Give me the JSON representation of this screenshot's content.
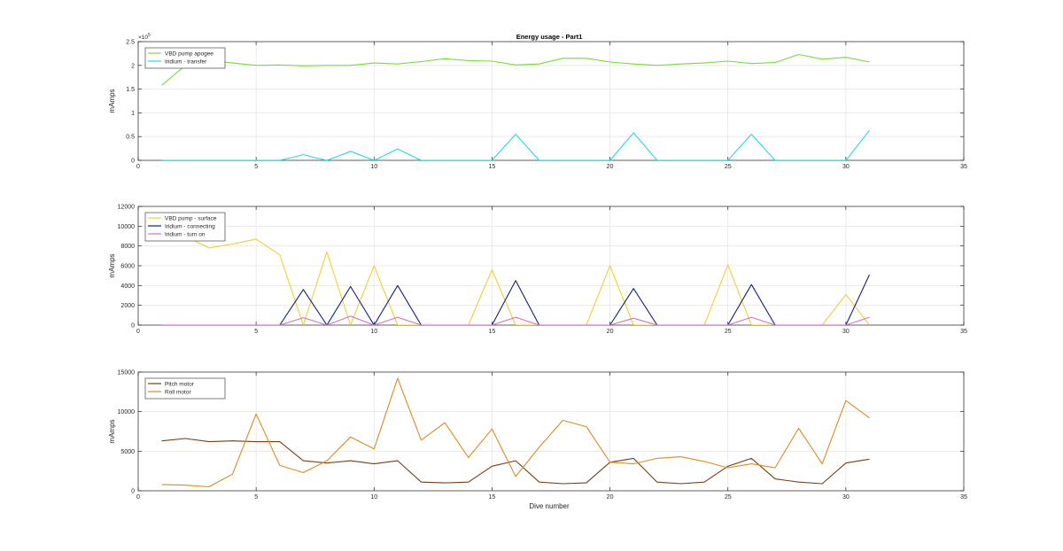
{
  "figure": {
    "title": "Energy usage - Part1",
    "xlabel": "Dive number"
  },
  "chart_data": [
    {
      "type": "line",
      "title": "Energy usage - Part1",
      "xlabel": "",
      "ylabel": "mAmps",
      "xlim": [
        0,
        35
      ],
      "ylim": [
        0,
        250000
      ],
      "xticks": [
        0,
        5,
        10,
        15,
        20,
        25,
        30,
        35
      ],
      "yticks": [
        0,
        50000,
        100000,
        150000,
        200000,
        250000
      ],
      "ytick_labels": [
        "0",
        "0.5",
        "1",
        "1.5",
        "2",
        "2.5"
      ],
      "y_exponent_label": "×10",
      "y_exponent_power": "5",
      "grid": true,
      "legend": "top-left",
      "series": [
        {
          "name": "VBD pump apogee",
          "color": "#77dd33",
          "x": [
            1,
            2,
            3,
            4,
            5,
            6,
            7,
            8,
            9,
            10,
            11,
            12,
            13,
            14,
            15,
            16,
            17,
            18,
            19,
            20,
            21,
            22,
            23,
            24,
            25,
            26,
            27,
            28,
            29,
            30,
            31
          ],
          "values": [
            158000,
            200000,
            210000,
            205000,
            200000,
            201000,
            199000,
            200000,
            200000,
            205000,
            203000,
            208000,
            214000,
            210000,
            209000,
            201000,
            203000,
            215000,
            215000,
            207000,
            203000,
            200000,
            203000,
            205000,
            209000,
            204000,
            206000,
            223000,
            213000,
            217000,
            207000
          ]
        },
        {
          "name": "Iridium - transfer",
          "color": "#22dddd",
          "x": [
            1,
            2,
            3,
            4,
            5,
            6,
            7,
            8,
            9,
            10,
            11,
            12,
            13,
            14,
            15,
            16,
            17,
            18,
            19,
            20,
            21,
            22,
            23,
            24,
            25,
            26,
            27,
            28,
            29,
            30,
            31
          ],
          "values": [
            0,
            0,
            0,
            0,
            0,
            0,
            12000,
            0,
            19000,
            0,
            24000,
            0,
            0,
            0,
            0,
            55000,
            0,
            0,
            0,
            0,
            58000,
            0,
            0,
            0,
            0,
            55000,
            0,
            0,
            0,
            0,
            63000
          ]
        }
      ]
    },
    {
      "type": "line",
      "xlabel": "",
      "ylabel": "mAmps",
      "xlim": [
        0,
        35
      ],
      "ylim": [
        0,
        12000
      ],
      "xticks": [
        0,
        5,
        10,
        15,
        20,
        25,
        30,
        35
      ],
      "yticks": [
        0,
        2000,
        4000,
        6000,
        8000,
        10000,
        12000
      ],
      "ytick_labels": [
        "0",
        "2000",
        "4000",
        "6000",
        "8000",
        "10000",
        "12000"
      ],
      "grid": true,
      "legend": "top-left",
      "series": [
        {
          "name": "VBD pump - surface",
          "color": "#f2d030",
          "x": [
            1,
            2,
            3,
            4,
            5,
            6,
            7,
            8,
            9,
            10,
            11,
            12,
            13,
            14,
            15,
            16,
            17,
            18,
            19,
            20,
            21,
            22,
            23,
            24,
            25,
            26,
            27,
            28,
            29,
            30,
            31
          ],
          "values": [
            10000,
            9000,
            7800,
            8200,
            8700,
            7100,
            0,
            7400,
            0,
            6000,
            0,
            0,
            0,
            0,
            5600,
            0,
            0,
            0,
            0,
            6000,
            0,
            0,
            0,
            0,
            6100,
            0,
            0,
            0,
            0,
            3100,
            0
          ]
        },
        {
          "name": "Iridium - connecting",
          "color": "#0f1f8c",
          "x": [
            1,
            2,
            3,
            4,
            5,
            6,
            7,
            8,
            9,
            10,
            11,
            12,
            13,
            14,
            15,
            16,
            17,
            18,
            19,
            20,
            21,
            22,
            23,
            24,
            25,
            26,
            27,
            28,
            29,
            30,
            31
          ],
          "values": [
            0,
            0,
            0,
            0,
            0,
            0,
            3600,
            0,
            3900,
            0,
            4000,
            0,
            0,
            0,
            0,
            4500,
            0,
            0,
            0,
            0,
            3700,
            0,
            0,
            0,
            0,
            4100,
            0,
            0,
            0,
            0,
            5100
          ]
        },
        {
          "name": "Iridium - turn on",
          "color": "#d96dc9",
          "x": [
            1,
            2,
            3,
            4,
            5,
            6,
            7,
            8,
            9,
            10,
            11,
            12,
            13,
            14,
            15,
            16,
            17,
            18,
            19,
            20,
            21,
            22,
            23,
            24,
            25,
            26,
            27,
            28,
            29,
            30,
            31
          ],
          "values": [
            0,
            0,
            0,
            0,
            0,
            0,
            750,
            0,
            900,
            0,
            800,
            0,
            0,
            0,
            0,
            800,
            0,
            0,
            0,
            0,
            700,
            0,
            0,
            0,
            0,
            800,
            0,
            0,
            0,
            0,
            800
          ]
        }
      ]
    },
    {
      "type": "line",
      "xlabel": "Dive number",
      "ylabel": "mAmps",
      "xlim": [
        0,
        35
      ],
      "ylim": [
        0,
        15000
      ],
      "xticks": [
        0,
        5,
        10,
        15,
        20,
        25,
        30,
        35
      ],
      "yticks": [
        0,
        5000,
        10000,
        15000
      ],
      "ytick_labels": [
        "0",
        "5000",
        "10000",
        "15000"
      ],
      "grid": true,
      "legend": "top-left",
      "series": [
        {
          "name": "Pitch motor",
          "color": "#7a3d14",
          "x": [
            1,
            2,
            3,
            4,
            5,
            6,
            7,
            8,
            9,
            10,
            11,
            12,
            13,
            14,
            15,
            16,
            17,
            18,
            19,
            20,
            21,
            22,
            23,
            24,
            25,
            26,
            27,
            28,
            29,
            30,
            31
          ],
          "values": [
            6300,
            6600,
            6200,
            6300,
            6200,
            6200,
            3800,
            3500,
            3800,
            3400,
            3800,
            1100,
            1000,
            1100,
            3100,
            3800,
            1100,
            900,
            1000,
            3600,
            4100,
            1100,
            900,
            1100,
            3100,
            4100,
            1500,
            1100,
            900,
            3500,
            4000
          ]
        },
        {
          "name": "Roll motor",
          "color": "#e08a1e",
          "x": [
            1,
            2,
            3,
            4,
            5,
            6,
            7,
            8,
            9,
            10,
            11,
            12,
            13,
            14,
            15,
            16,
            17,
            18,
            19,
            20,
            21,
            22,
            23,
            24,
            25,
            26,
            27,
            28,
            29,
            30,
            31
          ],
          "values": [
            800,
            700,
            500,
            2100,
            9700,
            3200,
            2300,
            3800,
            6800,
            5300,
            14200,
            6400,
            8600,
            4200,
            7800,
            1800,
            5500,
            8900,
            8100,
            3600,
            3400,
            4100,
            4300,
            3700,
            2900,
            3400,
            2900,
            7900,
            3400,
            11400,
            9200
          ]
        }
      ]
    }
  ]
}
